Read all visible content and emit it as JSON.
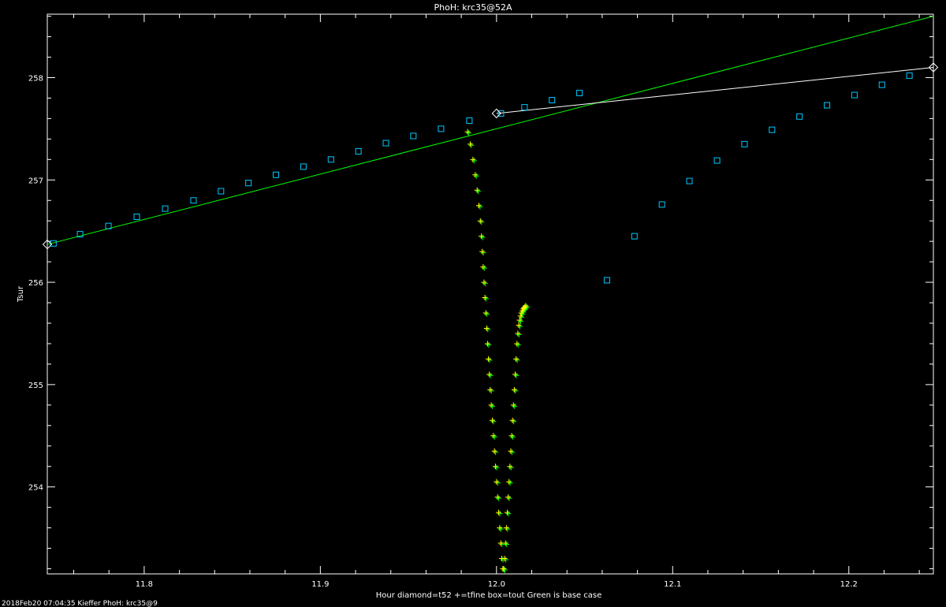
{
  "chart_data": {
    "type": "scatter",
    "title": "PhoH: krc35@52A",
    "xlabel": "Hour  diamond=t52  +=tfine  box=tout   Green is base case",
    "ylabel": "Tsur",
    "footer": "2018Feb20 07:04:35 Kieffer PhoH: krc35@9",
    "xlim": [
      11.745,
      12.248
    ],
    "ylim": [
      253.15,
      258.62
    ],
    "x_ticks": [
      11.8,
      11.9,
      12.0,
      12.1,
      12.2
    ],
    "y_ticks": [
      254,
      255,
      256,
      257,
      258
    ],
    "colors": {
      "background": "#000000",
      "axes": "#ffffff",
      "base_case": "#00ff00",
      "t52": "#ffffff",
      "tout": "#00c8ff",
      "tfine": "#ffff00",
      "tfine_base": "#00ff00"
    },
    "series": [
      {
        "id": "base_line",
        "style": "line",
        "x": [
          11.745,
          12.248
        ],
        "y": [
          256.37,
          258.6
        ]
      },
      {
        "id": "t52_line",
        "style": "line",
        "x": [
          12.0,
          12.248
        ],
        "y": [
          257.65,
          258.1
        ]
      },
      {
        "id": "t52_diamonds",
        "style": "diamond",
        "x": [
          11.745,
          12.0,
          12.248
        ],
        "y": [
          256.37,
          257.65,
          258.1
        ]
      },
      {
        "id": "tout_boxes",
        "style": "box",
        "x": [
          11.7485,
          11.7636,
          11.7797,
          11.7958,
          11.8119,
          11.828,
          11.8436,
          11.8592,
          11.8748,
          11.8904,
          11.906,
          11.9216,
          11.9372,
          11.9528,
          11.9685,
          11.9846,
          12.0025,
          12.0159,
          12.0315,
          12.0471,
          12.0627,
          12.0783,
          12.0939,
          12.1095,
          12.1252,
          12.1408,
          12.1564,
          12.172,
          12.1876,
          12.2032,
          12.2188,
          12.2344
        ],
        "y": [
          256.38,
          256.47,
          256.55,
          256.64,
          256.72,
          256.8,
          256.89,
          256.97,
          257.05,
          257.13,
          257.2,
          257.28,
          257.36,
          257.43,
          257.5,
          257.58,
          257.65,
          257.71,
          257.78,
          257.85,
          256.02,
          256.45,
          256.76,
          256.99,
          257.19,
          257.35,
          257.49,
          257.62,
          257.73,
          257.83,
          257.93,
          258.02
        ]
      },
      {
        "id": "tfine_crosses",
        "style": "cross",
        "x": [
          11.9836,
          11.9851,
          11.9866,
          11.9879,
          11.989,
          11.99,
          11.9908,
          11.9914,
          11.9919,
          11.9924,
          11.9929,
          11.9934,
          11.9939,
          11.9944,
          11.9949,
          11.9954,
          11.9959,
          11.9964,
          11.997,
          11.9976,
          11.9982,
          11.9988,
          11.9994,
          12.0,
          12.0006,
          12.0012,
          12.0018,
          12.0024,
          12.003,
          12.0036,
          12.0041,
          12.0046,
          12.0051,
          12.0056,
          12.0061,
          12.0066,
          12.0071,
          12.0076,
          12.0081,
          12.0086,
          12.0091,
          12.0096,
          12.0101,
          12.0106,
          12.0111,
          12.0116,
          12.0121,
          12.0126,
          12.0131,
          12.0136,
          12.0141,
          12.0146,
          12.0151,
          12.0156,
          12.0161,
          12.0166
        ],
        "y": [
          257.47,
          257.35,
          257.2,
          257.05,
          256.9,
          256.75,
          256.6,
          256.45,
          256.3,
          256.15,
          256.0,
          255.85,
          255.7,
          255.55,
          255.4,
          255.25,
          255.1,
          254.95,
          254.8,
          254.65,
          254.5,
          254.35,
          254.2,
          254.05,
          253.9,
          253.75,
          253.6,
          253.45,
          253.3,
          253.2,
          253.2,
          253.3,
          253.45,
          253.6,
          253.75,
          253.9,
          254.05,
          254.2,
          254.35,
          254.5,
          254.65,
          254.8,
          254.95,
          255.1,
          255.25,
          255.4,
          255.5,
          255.58,
          255.63,
          255.67,
          255.7,
          255.72,
          255.74,
          255.75,
          255.76,
          255.77
        ]
      },
      {
        "id": "tfine_base_crosses",
        "style": "cross",
        "x": [
          11.9836,
          11.9851,
          11.9866,
          11.9879,
          11.989,
          11.99,
          11.9908,
          11.9914,
          11.9919,
          11.9924,
          11.9929,
          11.9934,
          11.9939,
          11.9944,
          11.9949,
          11.9954,
          11.9959,
          11.9964,
          11.997,
          11.9976,
          11.9982,
          11.9988,
          11.9994,
          12.0,
          12.0006,
          12.0012,
          12.0018,
          12.0024,
          12.003,
          12.0036,
          12.0041,
          12.0046,
          12.0051,
          12.0056,
          12.0061,
          12.0066,
          12.0071,
          12.0076,
          12.0081,
          12.0086,
          12.0091,
          12.0096,
          12.0101,
          12.0106,
          12.0111,
          12.0116,
          12.0121,
          12.0126,
          12.0131,
          12.0136,
          12.0141,
          12.0146,
          12.0151,
          12.0156,
          12.0161,
          12.0166
        ],
        "y": [
          257.47,
          257.35,
          257.2,
          257.05,
          256.9,
          256.75,
          256.6,
          256.45,
          256.3,
          256.15,
          256.0,
          255.85,
          255.7,
          255.55,
          255.4,
          255.25,
          255.1,
          254.95,
          254.8,
          254.65,
          254.5,
          254.35,
          254.2,
          254.05,
          253.9,
          253.75,
          253.6,
          253.45,
          253.3,
          253.2,
          253.2,
          253.3,
          253.45,
          253.6,
          253.75,
          253.9,
          254.05,
          254.2,
          254.35,
          254.5,
          254.65,
          254.8,
          254.95,
          255.1,
          255.25,
          255.4,
          255.5,
          255.58,
          255.63,
          255.67,
          255.7,
          255.72,
          255.74,
          255.75,
          255.76,
          255.77
        ]
      }
    ]
  }
}
